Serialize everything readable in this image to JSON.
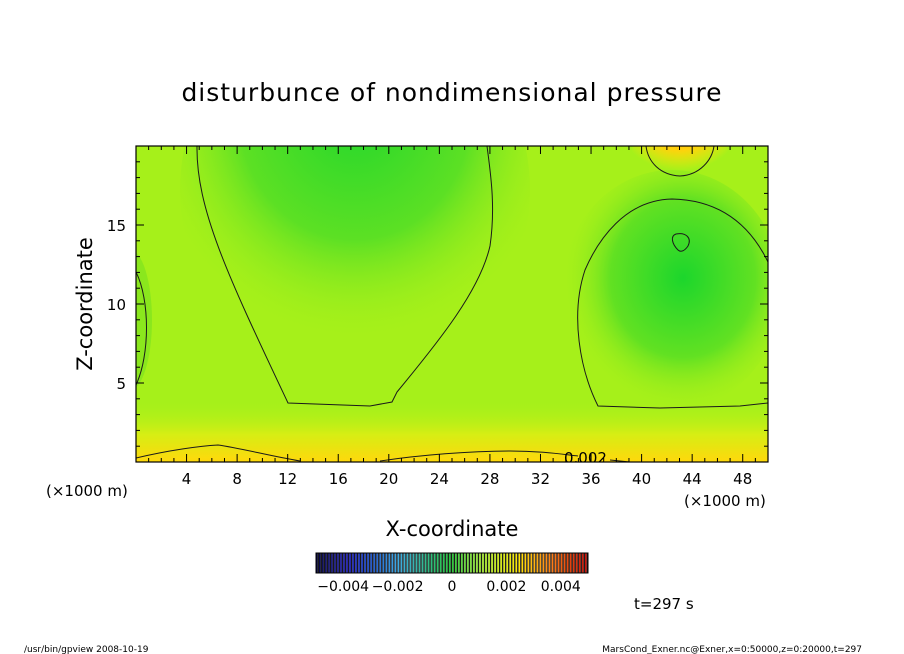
{
  "chart_data": {
    "type": "heatmap",
    "title": "disturbunce of nondimensional pressure",
    "xlabel": "X-coordinate",
    "ylabel": "Z-coordinate",
    "x_unit_left": "(×1000 m)",
    "x_unit_right": "(×1000 m)",
    "xlim": [
      0,
      50
    ],
    "ylim": [
      0,
      20
    ],
    "xticks": [
      4,
      8,
      12,
      16,
      20,
      24,
      28,
      32,
      36,
      40,
      44,
      48
    ],
    "yticks": [
      5,
      10,
      15
    ],
    "contour_label": "0.002",
    "colorbar": {
      "range": [
        -0.005,
        0.005
      ],
      "ticks": [
        "−0.004",
        "−0.002",
        "0",
        "0.002",
        "0.004"
      ]
    },
    "time_label": "t=297 s",
    "footer_left": "/usr/bin/gpview   2008-10-19",
    "footer_right": "MarsCond_Exner.nc@Exner,x=0:50000,z=0:20000,t=297",
    "colors": {
      "background": "#a6f01a",
      "low": "#1fd82c",
      "high": "#ffe40a",
      "max": "#ffa014"
    }
  }
}
